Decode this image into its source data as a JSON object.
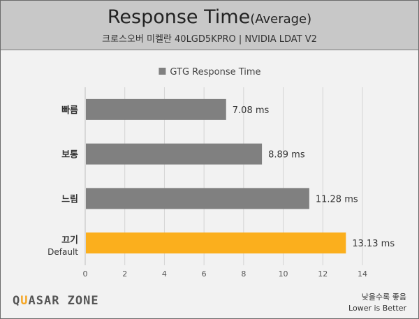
{
  "title": {
    "main": "Response Time",
    "sub": "(Average)",
    "subtitle": "크로스오버 미켈란 40LGD5KPRO  |  NVIDIA LDAT V2"
  },
  "footer": {
    "logo_part1": "Q",
    "logo_accent": "U",
    "logo_part2": "ASAR ZONE",
    "note_line1": "낮을수록 좋음",
    "note_line2": "Lower is Better"
  },
  "colors": {
    "bar_default": "#808080",
    "bar_highlight": "#fbaf1d",
    "legend_swatch": "#808080"
  },
  "chart_data": {
    "type": "bar",
    "orientation": "horizontal",
    "legend": [
      "GTG Response Time"
    ],
    "legend_position": "top-center",
    "categories": [
      "빠름",
      "보통",
      "느림",
      "끄기"
    ],
    "category_sublabels": [
      "",
      "",
      "",
      "Default"
    ],
    "series": [
      {
        "name": "GTG Response Time",
        "values": [
          7.08,
          8.89,
          11.28,
          13.13
        ],
        "labels": [
          "7.08 ms",
          "8.89 ms",
          "11.28 ms",
          "13.13 ms"
        ]
      }
    ],
    "highlight_index": 3,
    "xlim": [
      0,
      14
    ],
    "xticks": [
      0,
      2,
      4,
      6,
      8,
      10,
      12,
      14
    ],
    "grid": "vertical"
  }
}
